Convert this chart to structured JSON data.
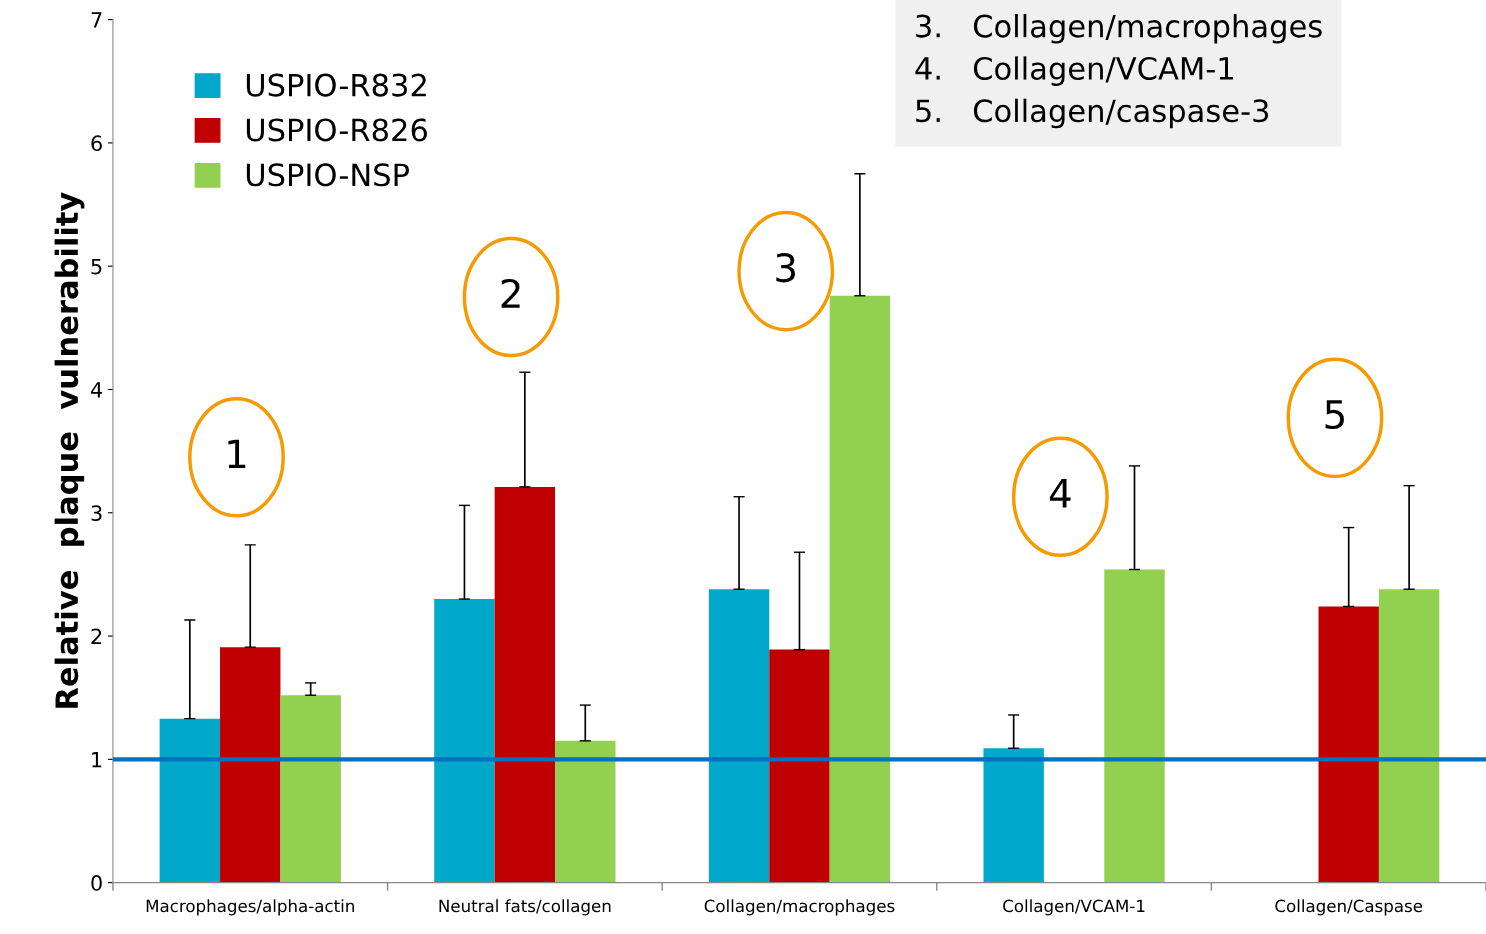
{
  "chart_data": {
    "type": "bar",
    "ylabel": "Relative  plaque  vulnerability",
    "categories": [
      "Macrophages/alpha-actin",
      "Neutral fats/collagen",
      "Collagen/macrophages",
      "Collagen/VCAM-1",
      "Collagen/Caspase"
    ],
    "series": [
      {
        "name": "USPIO-R832",
        "color": "#00a9c9",
        "values": [
          1.33,
          2.3,
          2.38,
          1.09,
          null
        ],
        "errors": [
          [
            1.33,
            2.13
          ],
          [
            2.3,
            3.06
          ],
          [
            2.38,
            3.13
          ],
          [
            1.09,
            1.36
          ],
          null
        ]
      },
      {
        "name": "USPIO-R826",
        "color": "#c00000",
        "values": [
          1.91,
          3.21,
          1.89,
          null,
          2.24
        ],
        "errors": [
          [
            1.91,
            2.74
          ],
          [
            3.21,
            4.14
          ],
          [
            1.89,
            2.68
          ],
          null,
          [
            2.24,
            2.88
          ]
        ]
      },
      {
        "name": "USPIO-NSP",
        "color": "#92d050",
        "values": [
          1.52,
          1.15,
          4.76,
          2.54,
          2.38
        ],
        "errors": [
          [
            1.52,
            1.62
          ],
          [
            1.15,
            1.44
          ],
          [
            4.76,
            5.75
          ],
          [
            2.54,
            3.38
          ],
          [
            2.38,
            3.22
          ]
        ]
      }
    ],
    "ylim": [
      0,
      7
    ],
    "yticks": [
      0,
      1,
      2,
      3,
      4,
      5,
      6,
      7
    ],
    "ref_lines": [
      {
        "axis": "y",
        "value": 1,
        "color": "#0070c0"
      }
    ],
    "annotations": [
      "1",
      "2",
      "3",
      "4",
      "5",
      "3.   Collagen/macrophages",
      "4.   Collagen/VCAM-1",
      "5.   Collagen/caspase-3"
    ],
    "legend": "top left",
    "grid": false
  }
}
